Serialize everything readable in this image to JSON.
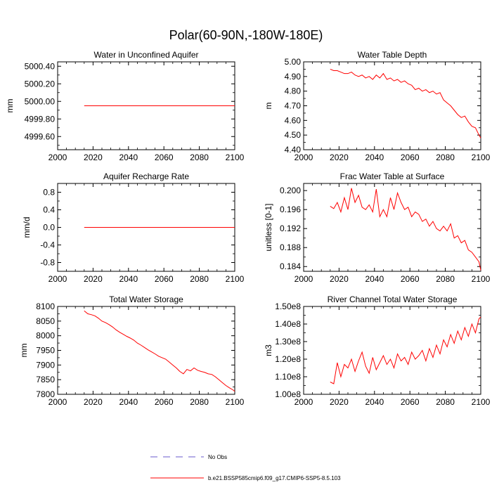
{
  "figure": {
    "title": "Polar(60-90N,-180W-180E)"
  },
  "legend": {
    "obs_label": "No Obs",
    "model_label": "b.e21.BSSP585cmip6.f09_g17.CMIP6-SSP5-8.5.103",
    "obs_color": "#6a5acd",
    "model_color": "#ff0000"
  },
  "chart_data": [
    {
      "type": "line",
      "title": "Water in Unconfined Aquifer",
      "xlabel": "",
      "ylabel": "mm",
      "xlim": [
        2000,
        2100
      ],
      "ylim": [
        4999.45,
        5000.45
      ],
      "xticks": [
        2000,
        2020,
        2040,
        2060,
        2080,
        2100
      ],
      "xtick_labels": [
        "2000",
        "2020",
        "2040",
        "2060",
        "2080",
        "2100"
      ],
      "yticks": [
        4999.6,
        4999.8,
        5000.0,
        5000.2,
        5000.4
      ],
      "ytick_labels": [
        "4999.60",
        "4999.80",
        "5000.00",
        "5000.20",
        "5000.40"
      ],
      "series": [
        {
          "name": "b.e21.BSSP585cmip6.f09_g17.CMIP6-SSP5-8.5.103",
          "color": "#ff0000",
          "x": [
            2015,
            2100
          ],
          "values": [
            4999.95,
            4999.95
          ]
        }
      ]
    },
    {
      "type": "line",
      "title": "Water Table Depth",
      "xlabel": "",
      "ylabel": "m",
      "xlim": [
        2000,
        2100
      ],
      "ylim": [
        4.4,
        5.0
      ],
      "xticks": [
        2000,
        2020,
        2040,
        2060,
        2080,
        2100
      ],
      "xtick_labels": [
        "2000",
        "2020",
        "2040",
        "2060",
        "2080",
        "2100"
      ],
      "yticks": [
        4.4,
        4.5,
        4.6,
        4.7,
        4.8,
        4.9,
        5.0
      ],
      "ytick_labels": [
        "4.40",
        "4.50",
        "4.60",
        "4.70",
        "4.80",
        "4.90",
        "5.00"
      ],
      "series": [
        {
          "name": "b.e21.BSSP585cmip6.f09_g17.CMIP6-SSP5-8.5.103",
          "color": "#ff0000",
          "x": [
            2015,
            2017,
            2019,
            2021,
            2023,
            2025,
            2027,
            2029,
            2031,
            2033,
            2035,
            2037,
            2039,
            2041,
            2043,
            2045,
            2047,
            2049,
            2051,
            2053,
            2055,
            2057,
            2059,
            2061,
            2063,
            2065,
            2067,
            2069,
            2071,
            2073,
            2075,
            2077,
            2079,
            2081,
            2083,
            2085,
            2087,
            2089,
            2091,
            2093,
            2095,
            2097,
            2099,
            2100
          ],
          "values": [
            4.95,
            4.94,
            4.94,
            4.93,
            4.92,
            4.92,
            4.93,
            4.91,
            4.9,
            4.91,
            4.89,
            4.9,
            4.88,
            4.91,
            4.89,
            4.92,
            4.88,
            4.89,
            4.87,
            4.88,
            4.86,
            4.87,
            4.85,
            4.84,
            4.81,
            4.82,
            4.8,
            4.81,
            4.79,
            4.8,
            4.78,
            4.79,
            4.74,
            4.72,
            4.7,
            4.67,
            4.64,
            4.62,
            4.63,
            4.59,
            4.56,
            4.55,
            4.5,
            4.48
          ]
        }
      ]
    },
    {
      "type": "line",
      "title": "Aquifer Recharge Rate",
      "xlabel": "",
      "ylabel": "mm/d",
      "xlim": [
        2000,
        2100
      ],
      "ylim": [
        -1.0,
        1.0
      ],
      "xticks": [
        2000,
        2020,
        2040,
        2060,
        2080,
        2100
      ],
      "xtick_labels": [
        "2000",
        "2020",
        "2040",
        "2060",
        "2080",
        "2100"
      ],
      "yticks": [
        -0.8,
        -0.4,
        0.0,
        0.4,
        0.8
      ],
      "ytick_labels": [
        "-0.8",
        "-0.4",
        "0.0",
        "0.4",
        "0.8"
      ],
      "series": [
        {
          "name": "b.e21.BSSP585cmip6.f09_g17.CMIP6-SSP5-8.5.103",
          "color": "#ff0000",
          "x": [
            2015,
            2100
          ],
          "values": [
            0.0,
            0.0
          ]
        }
      ]
    },
    {
      "type": "line",
      "title": "Frac Water Table at Surface",
      "xlabel": "",
      "ylabel": "unitless [0-1]",
      "xlim": [
        2000,
        2100
      ],
      "ylim": [
        0.183,
        0.2015
      ],
      "xticks": [
        2000,
        2020,
        2040,
        2060,
        2080,
        2100
      ],
      "xtick_labels": [
        "2000",
        "2020",
        "2040",
        "2060",
        "2080",
        "2100"
      ],
      "yticks": [
        0.184,
        0.188,
        0.192,
        0.196,
        0.2
      ],
      "ytick_labels": [
        "0.184",
        "0.188",
        "0.192",
        "0.196",
        "0.200"
      ],
      "series": [
        {
          "name": "b.e21.BSSP585cmip6.f09_g17.CMIP6-SSP5-8.5.103",
          "color": "#ff0000",
          "x": [
            2015,
            2017,
            2019,
            2021,
            2023,
            2025,
            2027,
            2029,
            2031,
            2033,
            2035,
            2037,
            2039,
            2041,
            2043,
            2045,
            2047,
            2049,
            2051,
            2053,
            2055,
            2057,
            2059,
            2061,
            2063,
            2065,
            2067,
            2069,
            2071,
            2073,
            2075,
            2077,
            2079,
            2081,
            2083,
            2085,
            2087,
            2089,
            2091,
            2093,
            2095,
            2097,
            2099,
            2100
          ],
          "values": [
            0.1967,
            0.1962,
            0.1975,
            0.1955,
            0.1985,
            0.196,
            0.2005,
            0.1975,
            0.199,
            0.1965,
            0.196,
            0.197,
            0.1955,
            0.2003,
            0.1945,
            0.196,
            0.1945,
            0.1985,
            0.196,
            0.1995,
            0.1975,
            0.196,
            0.1965,
            0.1945,
            0.1955,
            0.195,
            0.1935,
            0.194,
            0.1925,
            0.1935,
            0.192,
            0.1915,
            0.1925,
            0.1915,
            0.193,
            0.19,
            0.1905,
            0.189,
            0.1895,
            0.1875,
            0.187,
            0.186,
            0.185,
            0.1832
          ]
        }
      ]
    },
    {
      "type": "line",
      "title": "Total Water Storage",
      "xlabel": "",
      "ylabel": "mm",
      "xlim": [
        2000,
        2100
      ],
      "ylim": [
        7800,
        8100
      ],
      "xticks": [
        2000,
        2020,
        2040,
        2060,
        2080,
        2100
      ],
      "xtick_labels": [
        "2000",
        "2020",
        "2040",
        "2060",
        "2080",
        "2100"
      ],
      "yticks": [
        7800,
        7850,
        7900,
        7950,
        8000,
        8050,
        8100
      ],
      "ytick_labels": [
        "7800",
        "7850",
        "7900",
        "7950",
        "8000",
        "8050",
        "8100"
      ],
      "series": [
        {
          "name": "b.e21.BSSP585cmip6.f09_g17.CMIP6-SSP5-8.5.103",
          "color": "#ff0000",
          "x": [
            2015,
            2017,
            2019,
            2021,
            2023,
            2025,
            2027,
            2029,
            2031,
            2033,
            2035,
            2037,
            2039,
            2041,
            2043,
            2045,
            2047,
            2049,
            2051,
            2053,
            2055,
            2057,
            2059,
            2061,
            2063,
            2065,
            2067,
            2069,
            2071,
            2073,
            2075,
            2077,
            2079,
            2081,
            2083,
            2085,
            2087,
            2089,
            2091,
            2093,
            2095,
            2097,
            2099,
            2100
          ],
          "values": [
            8085,
            8075,
            8072,
            8068,
            8060,
            8050,
            8045,
            8038,
            8030,
            8020,
            8012,
            8005,
            7998,
            7992,
            7985,
            7975,
            7968,
            7960,
            7952,
            7945,
            7938,
            7930,
            7925,
            7920,
            7910,
            7900,
            7890,
            7878,
            7870,
            7885,
            7880,
            7890,
            7882,
            7878,
            7875,
            7870,
            7868,
            7860,
            7850,
            7840,
            7830,
            7822,
            7815,
            7810
          ]
        }
      ]
    },
    {
      "type": "line",
      "title": "River Channel Total Water Storage",
      "xlabel": "",
      "ylabel": "m3",
      "xlim": [
        2000,
        2100
      ],
      "ylim": [
        100000000,
        150000000
      ],
      "xticks": [
        2000,
        2020,
        2040,
        2060,
        2080,
        2100
      ],
      "xtick_labels": [
        "2000",
        "2020",
        "2040",
        "2060",
        "2080",
        "2100"
      ],
      "yticks": [
        100000000,
        110000000,
        120000000,
        130000000,
        140000000,
        150000000
      ],
      "ytick_labels": [
        "1.00e8",
        "1.10e8",
        "1.20e8",
        "1.30e8",
        "1.40e8",
        "1.50e8"
      ],
      "series": [
        {
          "name": "b.e21.BSSP585cmip6.f09_g17.CMIP6-SSP5-8.5.103",
          "color": "#ff0000",
          "x": [
            2015,
            2017,
            2019,
            2021,
            2023,
            2025,
            2027,
            2029,
            2031,
            2033,
            2035,
            2037,
            2039,
            2041,
            2043,
            2045,
            2047,
            2049,
            2051,
            2053,
            2055,
            2057,
            2059,
            2061,
            2063,
            2065,
            2067,
            2069,
            2071,
            2073,
            2075,
            2077,
            2079,
            2081,
            2083,
            2085,
            2087,
            2089,
            2091,
            2093,
            2095,
            2097,
            2099,
            2100
          ],
          "values": [
            107000000,
            106000000,
            118000000,
            110000000,
            117000000,
            115000000,
            120000000,
            113000000,
            119000000,
            124000000,
            116000000,
            112000000,
            121000000,
            114000000,
            118000000,
            122000000,
            117000000,
            120000000,
            115000000,
            123000000,
            119000000,
            121000000,
            117000000,
            124000000,
            120000000,
            122000000,
            125000000,
            119000000,
            126000000,
            121000000,
            128000000,
            123000000,
            131000000,
            127000000,
            134000000,
            129000000,
            136000000,
            131000000,
            138000000,
            133000000,
            140000000,
            135000000,
            143000000,
            144000000
          ]
        }
      ]
    }
  ]
}
